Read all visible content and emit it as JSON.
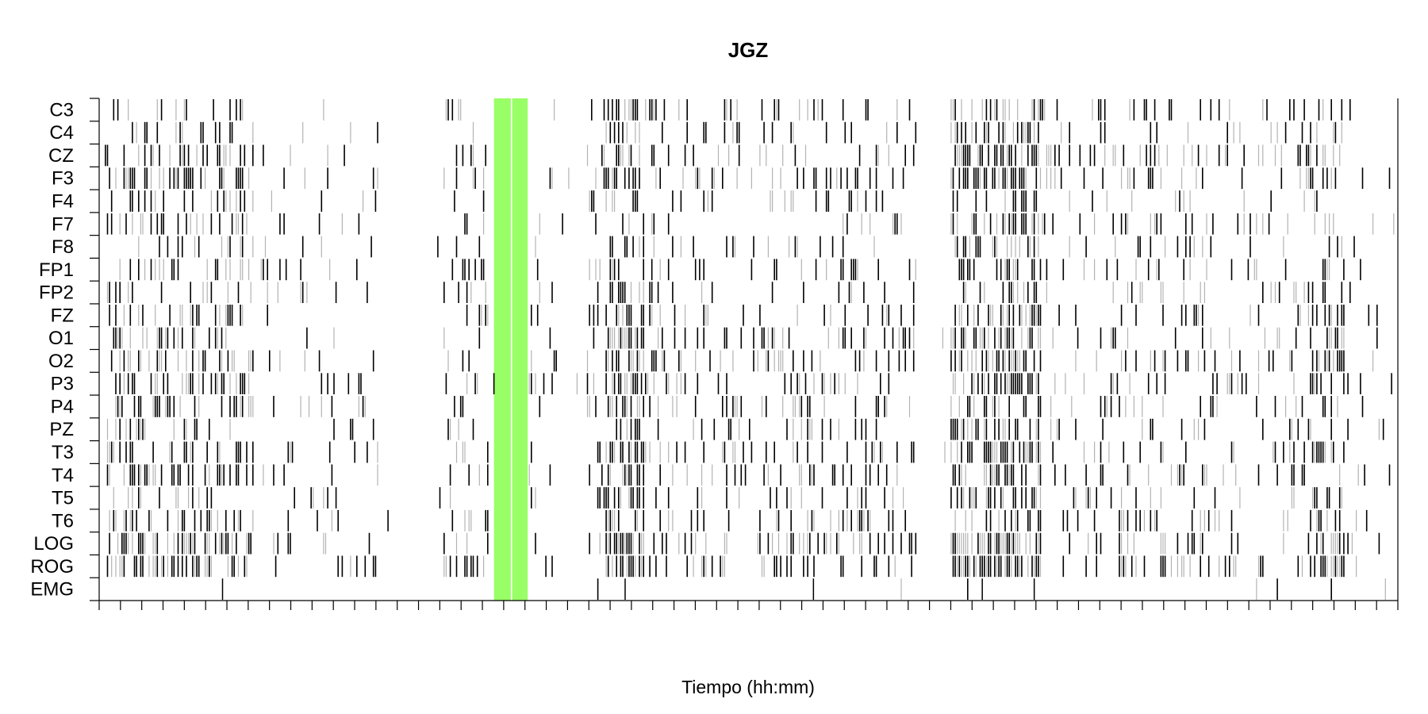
{
  "chart_data": {
    "type": "raster",
    "title": "JGZ",
    "xlabel": "Tiempo (hh:mm)",
    "ylabel": "",
    "xlim": [
      0,
      1
    ],
    "x_tick_count": 62,
    "x_tick_labels": [],
    "channels": [
      "C3",
      "C4",
      "CZ",
      "F3",
      "F4",
      "F7",
      "F8",
      "FP1",
      "FP2",
      "FZ",
      "O1",
      "O2",
      "P3",
      "P4",
      "PZ",
      "T3",
      "T4",
      "T5",
      "T6",
      "LOG",
      "ROG",
      "EMG"
    ],
    "highlight": {
      "color": "#99ff66",
      "spans": [
        [
          0.304,
          0.317
        ],
        [
          0.318,
          0.33
        ]
      ]
    },
    "event_color": "#000000",
    "event_light_color": "#b3b3b3",
    "bursts": [
      {
        "start": 0.005,
        "end": 0.12,
        "density": 0.35
      },
      {
        "start": 0.095,
        "end": 0.215,
        "density": 0.1
      },
      {
        "start": 0.265,
        "end": 0.3,
        "density": 0.18
      },
      {
        "start": 0.33,
        "end": 0.355,
        "density": 0.1
      },
      {
        "start": 0.375,
        "end": 0.44,
        "density": 0.2
      },
      {
        "start": 0.39,
        "end": 0.42,
        "density": 0.55
      },
      {
        "start": 0.44,
        "end": 0.52,
        "density": 0.14
      },
      {
        "start": 0.51,
        "end": 0.63,
        "density": 0.22
      },
      {
        "start": 0.655,
        "end": 0.725,
        "density": 0.55
      },
      {
        "start": 0.725,
        "end": 0.8,
        "density": 0.12
      },
      {
        "start": 0.78,
        "end": 0.85,
        "density": 0.22
      },
      {
        "start": 0.845,
        "end": 0.935,
        "density": 0.14
      },
      {
        "start": 0.93,
        "end": 0.96,
        "density": 0.35
      },
      {
        "start": 0.96,
        "end": 0.998,
        "density": 0.08
      }
    ],
    "channel_activity": {
      "C3": 0.8,
      "C4": 0.75,
      "CZ": 0.8,
      "F3": 1.0,
      "F4": 0.75,
      "F7": 0.8,
      "F8": 0.7,
      "FP1": 0.8,
      "FP2": 0.7,
      "FZ": 0.85,
      "O1": 1.1,
      "O2": 1.1,
      "P3": 1.0,
      "P4": 0.95,
      "PZ": 0.8,
      "T3": 0.95,
      "T4": 0.95,
      "T5": 0.9,
      "T6": 0.9,
      "LOG": 1.4,
      "ROG": 1.4,
      "EMG": 0.08
    }
  }
}
